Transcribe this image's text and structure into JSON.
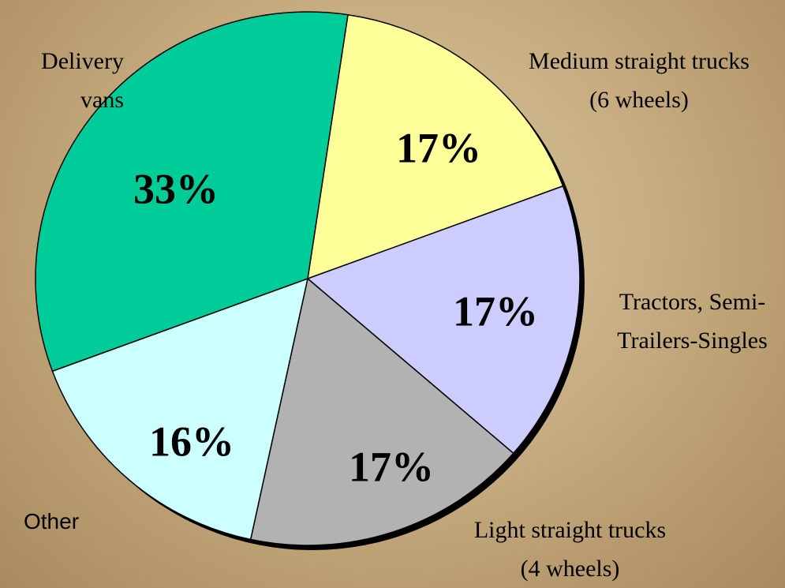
{
  "chart_data": {
    "type": "pie",
    "categories": [
      "Medium straight trucks (6 wheels)",
      "Tractors, Semi-Trailers-Singles",
      "Light straight trucks (4 wheels)",
      "Other",
      "Delivery vans"
    ],
    "values": [
      17,
      17,
      17,
      16,
      33
    ],
    "value_labels": [
      "17%",
      "17%",
      "17%",
      "16%",
      "33%"
    ],
    "colors": [
      "#ffff99",
      "#ccccff",
      "#b2b2b2",
      "#ccffff",
      "#00cc99"
    ]
  }
}
